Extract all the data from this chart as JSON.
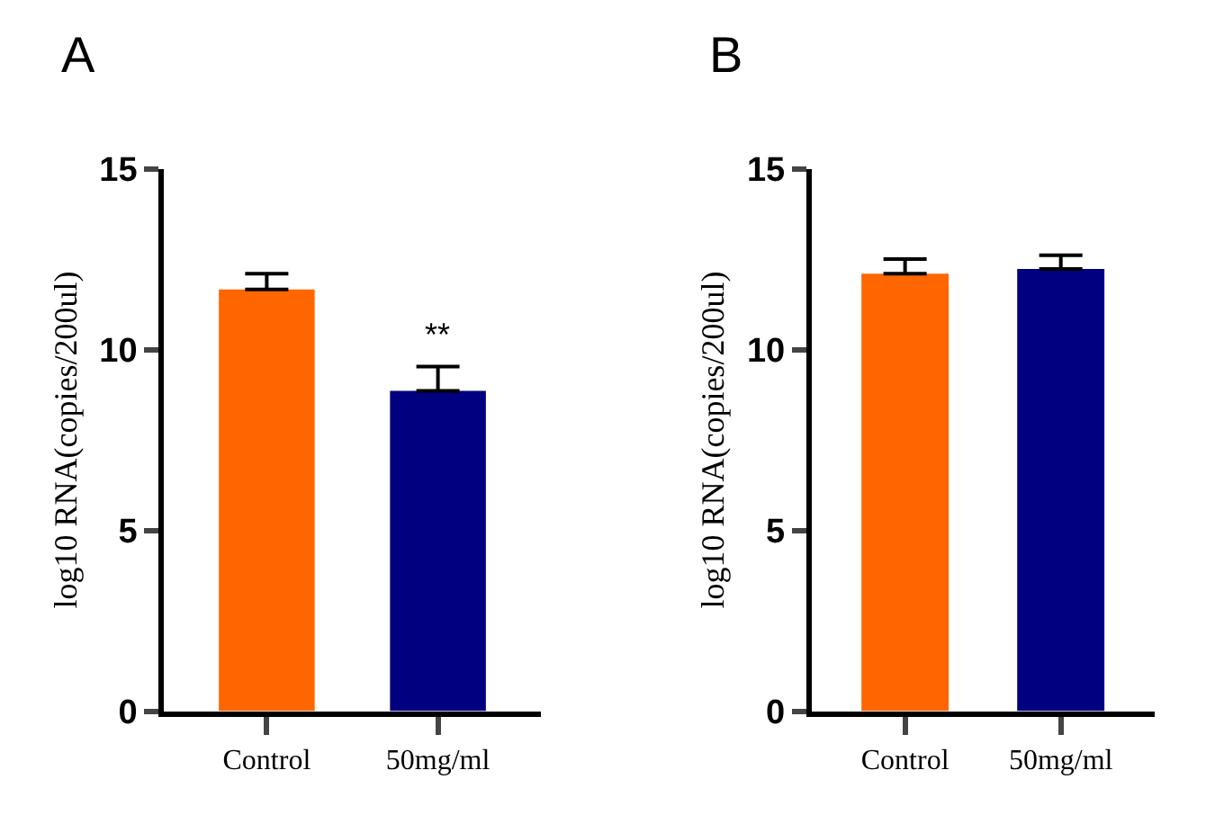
{
  "chart_data": [
    {
      "type": "bar",
      "title": "A",
      "ylabel": "log10 RNA(copies/200ul)",
      "categories": [
        "Control",
        "50mg/ml"
      ],
      "values": [
        11.66,
        8.86
      ],
      "colors": [
        "#ff6600",
        "#000080"
      ],
      "errors": [
        [
          11.66,
          12.1
        ],
        [
          8.86,
          9.53
        ]
      ],
      "ylim": [
        0,
        15
      ],
      "yticks": [
        0,
        5,
        10,
        15
      ],
      "annotations": [
        "**"
      ]
    },
    {
      "type": "bar",
      "title": "B",
      "ylabel": "log10 RNA(copies/200ul)",
      "categories": [
        "Control",
        "50mg/ml"
      ],
      "values": [
        12.1,
        12.23
      ],
      "colors": [
        "#ff6600",
        "#000080"
      ],
      "errors": [
        [
          12.1,
          12.5
        ],
        [
          12.23,
          12.61
        ]
      ],
      "ylim": [
        0,
        15
      ],
      "yticks": [
        0,
        5,
        10,
        15
      ]
    }
  ]
}
